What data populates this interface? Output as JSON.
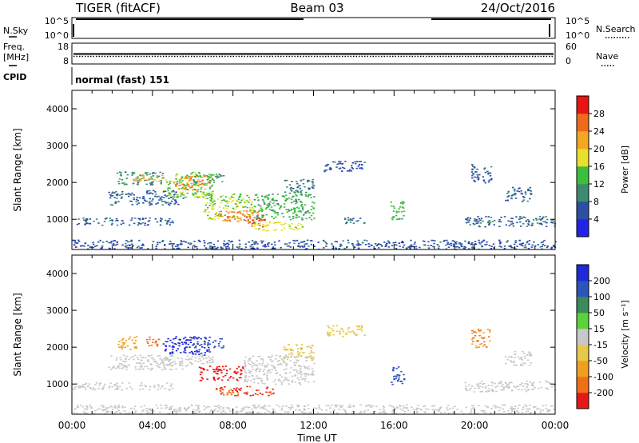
{
  "header": {
    "radar": "TIGER (fitACF)",
    "beam": "Beam 03",
    "date": "24/Oct/2016"
  },
  "params": {
    "nsky_label": "N.Sky",
    "nsearch_label": "N.Search",
    "freq_label": "Freq.",
    "freq_unit": "[MHz]",
    "nave_label": "Nave",
    "cpid_label": "CPID",
    "cpid_text": "normal (fast) 151",
    "noise_ticks_left": [
      "10^5",
      "10^0"
    ],
    "noise_ticks_right": [
      "10^5",
      "10^0"
    ],
    "freq_ticks": [
      "18",
      "8"
    ],
    "nave_ticks": [
      "60",
      "0"
    ],
    "nave_value": 22,
    "freq_value": 12.8
  },
  "axes": {
    "xlabel": "Time UT",
    "xticks": [
      "00:00",
      "04:00",
      "08:00",
      "12:00",
      "16:00",
      "20:00",
      "00:00"
    ],
    "ylabel": "Slant Range [km]",
    "yticks": [
      "1000",
      "2000",
      "3000",
      "4000"
    ]
  },
  "colorbars": {
    "power": {
      "label": "Power [dB]",
      "ticks": [
        "4",
        "8",
        "12",
        "16",
        "20",
        "24",
        "28"
      ],
      "colors": [
        "#2323e8",
        "#2a4fa3",
        "#3d8a6e",
        "#3cbf3c",
        "#e8e02a",
        "#f5a623",
        "#f06a1c",
        "#e8140f"
      ]
    },
    "velocity": {
      "label": "Velocity [m s⁻¹]",
      "ticks": [
        "200",
        "100",
        "50",
        "15",
        "-15",
        "-50",
        "-100",
        "-200"
      ],
      "colors": [
        "#1c2ad8",
        "#2b55b8",
        "#3a8a5a",
        "#5ad23a",
        "#c8c8c8",
        "#e8c84a",
        "#f0a020",
        "#f07018",
        "#e81818"
      ]
    }
  },
  "chart_data": [
    {
      "type": "heatmap",
      "title": "Power",
      "xlabel": "Time UT",
      "ylabel": "Slant Range [km]",
      "xlim": [
        0,
        24
      ],
      "ylim": [
        180,
        4500
      ],
      "value_label": "Power [dB]",
      "value_range": [
        0,
        30
      ],
      "regions": [
        {
          "t": [
            0.0,
            24.0
          ],
          "r": [
            200,
            450
          ],
          "value": 6
        },
        {
          "t": [
            0.0,
            5.0
          ],
          "r": [
            850,
            1050
          ],
          "value": 7
        },
        {
          "t": [
            1.8,
            5.5
          ],
          "r": [
            1400,
            1800
          ],
          "value": 7
        },
        {
          "t": [
            2.2,
            4.5
          ],
          "r": [
            1950,
            2300
          ],
          "value": 10
        },
        {
          "t": [
            3.0,
            4.5
          ],
          "r": [
            2050,
            2250
          ],
          "value": 22
        },
        {
          "t": [
            4.5,
            7.0
          ],
          "r": [
            1600,
            2300
          ],
          "value": 15
        },
        {
          "t": [
            5.0,
            6.8
          ],
          "r": [
            1800,
            2200
          ],
          "value": 24
        },
        {
          "t": [
            6.0,
            7.5
          ],
          "r": [
            2000,
            2250
          ],
          "value": 12
        },
        {
          "t": [
            6.5,
            9.0
          ],
          "r": [
            1000,
            1700
          ],
          "value": 16
        },
        {
          "t": [
            7.2,
            9.5
          ],
          "r": [
            950,
            1250
          ],
          "value": 24
        },
        {
          "t": [
            8.6,
            9.6
          ],
          "r": [
            800,
            1100
          ],
          "value": 28
        },
        {
          "t": [
            9.0,
            12.0
          ],
          "r": [
            1000,
            1700
          ],
          "value": 13
        },
        {
          "t": [
            9.0,
            11.5
          ],
          "r": [
            700,
            950
          ],
          "value": 18
        },
        {
          "t": [
            10.5,
            12.0
          ],
          "r": [
            1700,
            2100
          ],
          "value": 9
        },
        {
          "t": [
            12.5,
            14.5
          ],
          "r": [
            2300,
            2600
          ],
          "value": 6
        },
        {
          "t": [
            13.5,
            14.5
          ],
          "r": [
            900,
            1100
          ],
          "value": 7
        },
        {
          "t": [
            15.8,
            16.5
          ],
          "r": [
            1000,
            1500
          ],
          "value": 13
        },
        {
          "t": [
            19.5,
            24.0
          ],
          "r": [
            800,
            1100
          ],
          "value": 7
        },
        {
          "t": [
            19.8,
            20.8
          ],
          "r": [
            2000,
            2500
          ],
          "value": 6
        },
        {
          "t": [
            21.5,
            22.8
          ],
          "r": [
            1500,
            1900
          ],
          "value": 7
        }
      ]
    },
    {
      "type": "heatmap",
      "title": "Velocity",
      "xlabel": "Time UT",
      "ylabel": "Slant Range [km]",
      "xlim": [
        0,
        24
      ],
      "ylim": [
        180,
        4500
      ],
      "value_label": "Velocity [m s⁻¹]",
      "value_range": [
        -250,
        250
      ],
      "regions": [
        {
          "t": [
            0.0,
            24.0
          ],
          "r": [
            200,
            450
          ],
          "value": 0
        },
        {
          "t": [
            0.0,
            5.0
          ],
          "r": [
            850,
            1050
          ],
          "value": 0
        },
        {
          "t": [
            1.8,
            5.5
          ],
          "r": [
            1400,
            1800
          ],
          "value": 0
        },
        {
          "t": [
            2.2,
            3.2
          ],
          "r": [
            1950,
            2300
          ],
          "value": -80
        },
        {
          "t": [
            3.5,
            4.3
          ],
          "r": [
            2050,
            2300
          ],
          "value": -150
        },
        {
          "t": [
            4.5,
            6.8
          ],
          "r": [
            1800,
            2300
          ],
          "value": 220
        },
        {
          "t": [
            4.5,
            7.0
          ],
          "r": [
            1500,
            1800
          ],
          "value": 0
        },
        {
          "t": [
            6.0,
            7.5
          ],
          "r": [
            2000,
            2250
          ],
          "value": 150
        },
        {
          "t": [
            6.3,
            8.5
          ],
          "r": [
            1100,
            1500
          ],
          "value": -220
        },
        {
          "t": [
            7.0,
            10.0
          ],
          "r": [
            700,
            950
          ],
          "value": -200
        },
        {
          "t": [
            8.5,
            12.0
          ],
          "r": [
            1000,
            1800
          ],
          "value": 0
        },
        {
          "t": [
            10.5,
            12.0
          ],
          "r": [
            1700,
            2100
          ],
          "value": -40
        },
        {
          "t": [
            12.5,
            14.5
          ],
          "r": [
            2300,
            2600
          ],
          "value": -30
        },
        {
          "t": [
            15.8,
            16.5
          ],
          "r": [
            1000,
            1500
          ],
          "value": 120
        },
        {
          "t": [
            19.5,
            24.0
          ],
          "r": [
            800,
            1100
          ],
          "value": 0
        },
        {
          "t": [
            19.8,
            20.8
          ],
          "r": [
            2000,
            2500
          ],
          "value": -100
        },
        {
          "t": [
            21.5,
            22.8
          ],
          "r": [
            1500,
            1900
          ],
          "value": 0
        }
      ]
    }
  ]
}
